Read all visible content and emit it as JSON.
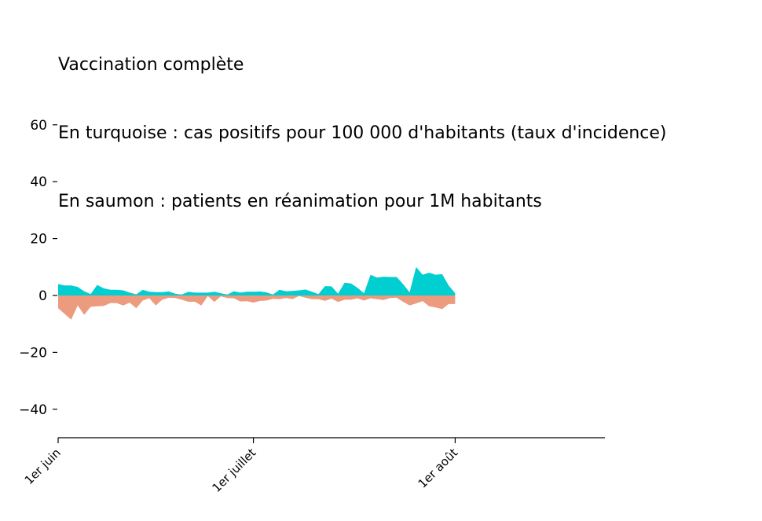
{
  "chart_data": {
    "type": "area",
    "title_lines": [
      "Vaccination complète",
      "En turquoise : cas positifs pour 100 000 d'habitants (taux d'incidence)",
      "En saumon : patients en réanimation pour 1M habitants"
    ],
    "xlabel": "",
    "ylabel": "",
    "ylim": [
      -50,
      60
    ],
    "yticks": [
      60,
      40,
      20,
      0,
      -20,
      -40
    ],
    "yticklabels": [
      "60",
      "40",
      "20",
      "0",
      "−20",
      "−40"
    ],
    "x_start": "2021-06-01",
    "x_end": "2021-08-24",
    "xticks": [
      {
        "date": "2021-06-01",
        "label": "1er juin"
      },
      {
        "date": "2021-07-01",
        "label": "1er juillet"
      },
      {
        "date": "2021-08-01",
        "label": "1er août"
      }
    ],
    "dates": [
      "2021-06-01",
      "2021-06-02",
      "2021-06-03",
      "2021-06-04",
      "2021-06-05",
      "2021-06-06",
      "2021-06-07",
      "2021-06-08",
      "2021-06-09",
      "2021-06-10",
      "2021-06-11",
      "2021-06-12",
      "2021-06-13",
      "2021-06-14",
      "2021-06-15",
      "2021-06-16",
      "2021-06-17",
      "2021-06-18",
      "2021-06-19",
      "2021-06-20",
      "2021-06-21",
      "2021-06-22",
      "2021-06-23",
      "2021-06-24",
      "2021-06-25",
      "2021-06-26",
      "2021-06-27",
      "2021-06-28",
      "2021-06-29",
      "2021-06-30",
      "2021-07-01",
      "2021-07-02",
      "2021-07-03",
      "2021-07-04",
      "2021-07-05",
      "2021-07-06",
      "2021-07-07",
      "2021-07-08",
      "2021-07-09",
      "2021-07-10",
      "2021-07-11",
      "2021-07-12",
      "2021-07-13",
      "2021-07-14",
      "2021-07-15",
      "2021-07-16",
      "2021-07-17",
      "2021-07-18",
      "2021-07-19",
      "2021-07-20",
      "2021-07-21",
      "2021-07-22",
      "2021-07-23",
      "2021-07-24",
      "2021-07-25",
      "2021-07-26",
      "2021-07-27",
      "2021-07-28",
      "2021-07-29",
      "2021-07-30",
      "2021-07-31",
      "2021-08-01"
    ],
    "series": [
      {
        "name": "cas positifs pour 100 000 d'habitants",
        "color": "#00CED1",
        "values": [
          4,
          3.5,
          3.5,
          3,
          1.5,
          0.5,
          3.7,
          2.5,
          2,
          2,
          1.8,
          1,
          0.4,
          2,
          1.3,
          1.2,
          1.2,
          1.4,
          0.6,
          0.3,
          1.3,
          1,
          1,
          1,
          1.3,
          0.8,
          0.3,
          1.5,
          1,
          1.3,
          1.3,
          1.4,
          1.1,
          0.3,
          2,
          1.5,
          1.6,
          1.8,
          2.1,
          1.3,
          0.5,
          3.3,
          3.2,
          0.6,
          4.5,
          4.2,
          2.7,
          0.8,
          7.3,
          6.3,
          6.6,
          6.5,
          6.5,
          4,
          1.1,
          10,
          7.3,
          8,
          7.3,
          7.5,
          3.5,
          0.8
        ]
      },
      {
        "name": "patients en réanimation pour 1M habitants",
        "color": "#EC9B7E",
        "values": [
          -4.5,
          -6.5,
          -8.5,
          -3.5,
          -6.8,
          -4,
          -3.8,
          -3.7,
          -2.7,
          -2.7,
          -3.5,
          -2.5,
          -4.5,
          -1.8,
          -1,
          -3.5,
          -1.5,
          -0.8,
          -0.9,
          -1.5,
          -2.2,
          -2.2,
          -3.5,
          -0.2,
          -2.3,
          -0.3,
          -0.9,
          -1,
          -2.1,
          -2,
          -2.5,
          -1.9,
          -1.8,
          -1.2,
          -1.3,
          -0.9,
          -1.3,
          -0.2,
          -0.8,
          -1.3,
          -1.3,
          -1.9,
          -1.1,
          -2.3,
          -1.5,
          -1.5,
          -1,
          -1.8,
          -1,
          -1.3,
          -1.6,
          -0.9,
          -0.8,
          -2.2,
          -3.5,
          -2.8,
          -2,
          -3.8,
          -4.2,
          -4.8,
          -3,
          -3
        ]
      }
    ]
  }
}
